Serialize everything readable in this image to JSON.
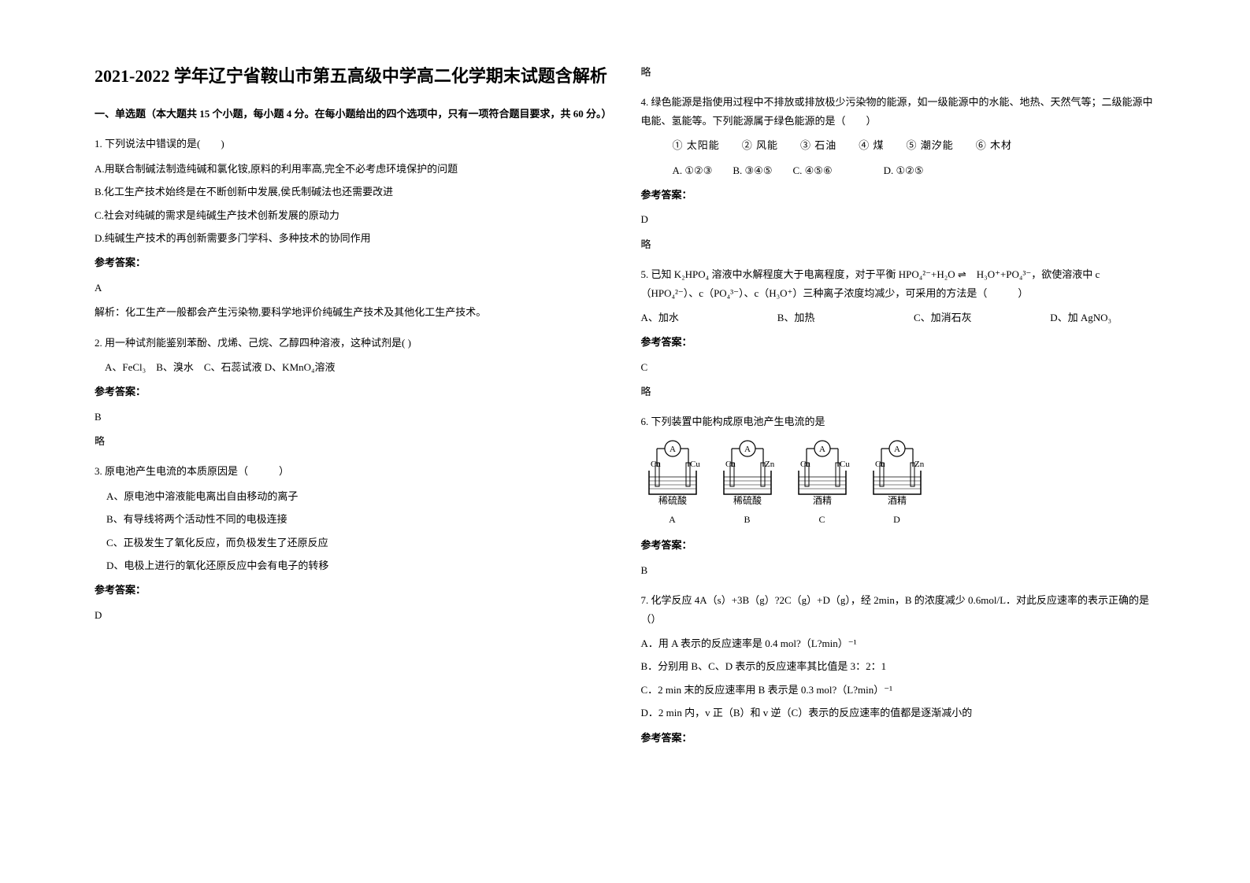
{
  "title": "2021-2022 学年辽宁省鞍山市第五高级中学高二化学期末试题含解析",
  "section1_header": "一、单选题（本大题共 15 个小题，每小题 4 分。在每小题给出的四个选项中，只有一项符合题目要求，共 60 分。）",
  "q1": {
    "stem": "1. 下列说法中错误的是(　　)",
    "optA": "A.用联合制碱法制造纯碱和氯化铵,原料的利用率高,完全不必考虑环境保护的问题",
    "optB": "B.化工生产技术始终是在不断创新中发展,侯氏制碱法也还需要改进",
    "optC": "C.社会对纯碱的需求是纯碱生产技术创新发展的原动力",
    "optD": "D.纯碱生产技术的再创新需要多门学科、多种技术的协同作用",
    "answer_label": "参考答案：",
    "answer": "A",
    "explanation": "解析：化工生产一般都会产生污染物,要科学地评价纯碱生产技术及其他化工生产技术。"
  },
  "q2": {
    "stem": "2. 用一种试剂能鉴别苯酚、戊烯、己烷、乙醇四种溶液，这种试剂是( )",
    "options": "　A、FeCl₃　B、溴水　C、石蕊试液 D、KMnO₄溶液",
    "answer_label": "参考答案：",
    "answer": "B",
    "abbr": "略"
  },
  "q3": {
    "stem": "3. 原电池产生电流的本质原因是（　　　）",
    "optA": "A、原电池中溶液能电离出自由移动的离子",
    "optB": "B、有导线将两个活动性不同的电极连接",
    "optC": "C、正极发生了氧化反应，而负极发生了还原反应",
    "optD": "D、电极上进行的氧化还原反应中会有电子的转移",
    "answer_label": "参考答案：",
    "answer": "D"
  },
  "col2_abbr1": "略",
  "q4": {
    "stem": "4. 绿色能源是指使用过程中不排放或排放极少污染物的能源，如一级能源中的水能、地热、天然气等；二级能源中电能、氢能等。下列能源属于绿色能源的是（　　）",
    "options_line": "① 太阳能　　② 风能　　③ 石油　　④ 煤　　⑤ 潮汐能　　⑥ 木材",
    "choices": "A. ①②③　　B. ③④⑤　　C. ④⑤⑥　　　　　D. ①②⑤",
    "answer_label": "参考答案：",
    "answer": "D",
    "abbr": "略"
  },
  "q5": {
    "stem_part1": "5. 已知 K₂HPO₄ 溶液中水解程度大于电离程度，对于平衡 HPO₄²⁻+H₂O ⇌　H₃O⁺+PO₄³⁻，欲使溶液中 c（HPO₄²⁻）、c（PO₄³⁻）、c（H₃O⁺）三种离子浓度均减少，可采用的方法是（　　　）",
    "optA": "A、加水",
    "optB": "B、加热",
    "optC": "C、加消石灰",
    "optD": "D、加 AgNO₃",
    "answer_label": "参考答案：",
    "answer": "C",
    "abbr": "略"
  },
  "q6": {
    "stem": "6. 下列装置中能构成原电池产生电流的是",
    "beakers": [
      {
        "left": "Cu",
        "right": "Cu",
        "label": "稀硫酸",
        "letter": "A"
      },
      {
        "left": "Cu",
        "right": "Zn",
        "label": "稀硫酸",
        "letter": "B"
      },
      {
        "left": "Cu",
        "right": "Cu",
        "label": "酒精",
        "letter": "C"
      },
      {
        "left": "Cu",
        "right": "Zn",
        "label": "酒精",
        "letter": "D"
      }
    ],
    "answer_label": "参考答案：",
    "answer": "B"
  },
  "q7": {
    "stem": "7. 化学反应 4A（s）+3B（g）?2C（g）+D（g），经 2min，B 的浓度减少 0.6mol/L．对此反应速率的表示正确的是（）",
    "optA": "A．用 A 表示的反应速率是 0.4 mol?（L?min）⁻¹",
    "optB": "B．分别用 B、C、D 表示的反应速率其比值是 3：2：1",
    "optC": "C．2 min 末的反应速率用 B 表示是 0.3 mol?（L?min）⁻¹",
    "optD": "D．2 min 内，v 正（B）和 v 逆（C）表示的反应速率的值都是逐渐减小的",
    "answer_label": "参考答案："
  }
}
